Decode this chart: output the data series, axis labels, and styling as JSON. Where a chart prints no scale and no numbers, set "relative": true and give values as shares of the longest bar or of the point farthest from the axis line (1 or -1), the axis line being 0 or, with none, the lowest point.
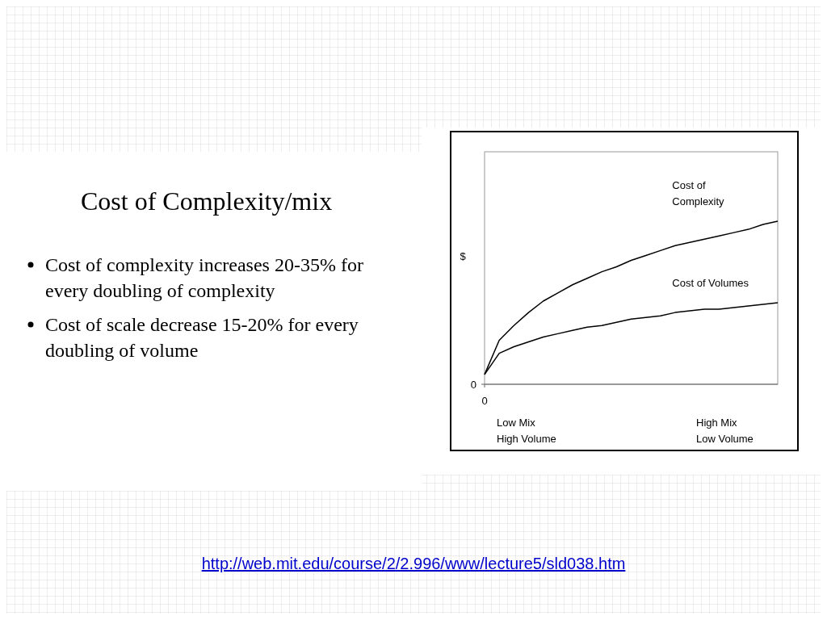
{
  "chart_data": {
    "type": "line",
    "title": "Cost of Complexity/mix",
    "ylabel": "$",
    "relative": true,
    "line_style": "solid",
    "categories": [
      null,
      null,
      null,
      null,
      null,
      null,
      null,
      null,
      null,
      null,
      null,
      null,
      null,
      null,
      null,
      null,
      null,
      null,
      null,
      null,
      null
    ],
    "series": [
      {
        "name": "Cost of\nComplexity",
        "color": "#000000",
        "values": [
          0.06,
          0.27,
          0.36,
          0.44,
          0.51,
          0.56,
          0.61,
          0.65,
          0.69,
          0.72,
          0.76,
          0.79,
          0.82,
          0.85,
          0.87,
          0.89,
          0.91,
          0.93,
          0.95,
          0.98,
          1
        ]
      },
      {
        "name": "Cost of Volumes",
        "color": "#000000",
        "values": [
          0.06,
          0.19,
          0.23,
          0.26,
          0.29,
          0.31,
          0.33,
          0.35,
          0.36,
          0.38,
          0.4,
          0.41,
          0.42,
          0.44,
          0.45,
          0.46,
          0.46,
          0.47,
          0.48,
          0.49,
          0.5
        ]
      }
    ],
    "annotations": [
      "Cost of complexity increases 20-35% for every doubling of complexity",
      "Cost of scale decrease 15-20% for every doubling of volume",
      "Low Mix\nHigh Volume",
      "High Mix\nLow Volume",
      "0",
      "0",
      "http://web.mit.edu/course/2/2.996/www/lecture5/sld038.htm"
    ]
  }
}
